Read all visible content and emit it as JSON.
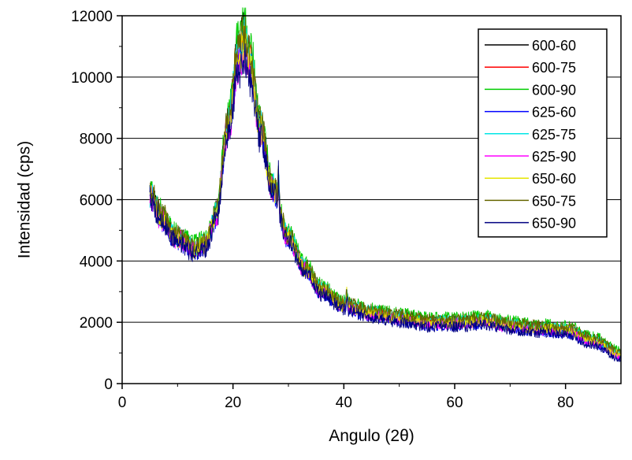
{
  "chart_data": {
    "type": "line",
    "xlabel": "Angulo (2θ)",
    "ylabel": "Intensidad (cps)",
    "xlim": [
      0,
      90
    ],
    "ylim": [
      0,
      12000
    ],
    "x_ticks": [
      0,
      20,
      40,
      60,
      80
    ],
    "x_tick_labels": [
      "0",
      "20",
      "40",
      "60",
      "80"
    ],
    "y_ticks": [
      0,
      2000,
      4000,
      6000,
      8000,
      10000,
      12000
    ],
    "y_tick_labels": [
      "0",
      "2000",
      "4000",
      "6000",
      "8000",
      "10000",
      "12000"
    ],
    "grid": "horizontal",
    "legend_position": "top-right",
    "series": [
      {
        "name": "600-60",
        "color": "#000000",
        "peak": 11500,
        "offset": 0
      },
      {
        "name": "600-75",
        "color": "#ff0000",
        "peak": 11200,
        "offset": -50
      },
      {
        "name": "600-90",
        "color": "#00cc00",
        "peak": 11800,
        "offset": 100
      },
      {
        "name": "625-60",
        "color": "#0000ff",
        "peak": 11000,
        "offset": -150
      },
      {
        "name": "625-75",
        "color": "#00e5e5",
        "peak": 11300,
        "offset": 0
      },
      {
        "name": "625-90",
        "color": "#ff00ff",
        "peak": 10800,
        "offset": -100
      },
      {
        "name": "650-60",
        "color": "#e5e500",
        "peak": 11100,
        "offset": -50
      },
      {
        "name": "650-75",
        "color": "#666600",
        "peak": 11400,
        "offset": 50
      },
      {
        "name": "650-90",
        "color": "#000080",
        "peak": 10600,
        "offset": -200
      }
    ],
    "profile": {
      "x": [
        5,
        7,
        10,
        13,
        15,
        17,
        19,
        21,
        22,
        23,
        25,
        27,
        30,
        33,
        36,
        40,
        45,
        50,
        55,
        60,
        65,
        70,
        75,
        80,
        85,
        90
      ],
      "y": [
        5800,
        5300,
        4800,
        4450,
        4600,
        5600,
        8500,
        11000,
        11500,
        10800,
        8500,
        6500,
        4800,
        3800,
        3100,
        2600,
        2350,
        2200,
        2050,
        2050,
        2100,
        1950,
        1850,
        1800,
        1450,
        1000
      ]
    }
  }
}
